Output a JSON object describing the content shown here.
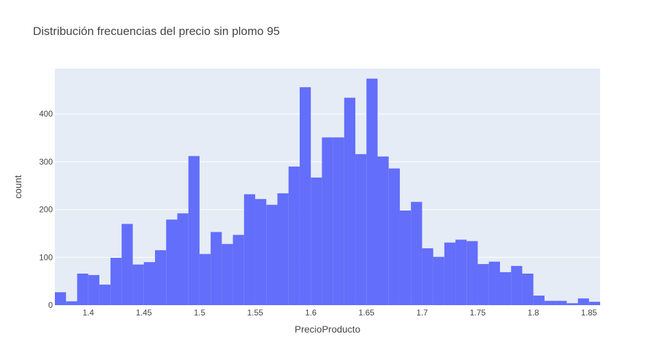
{
  "chart_data": {
    "type": "bar",
    "title": "Distribución frecuencias del precio sin plomo 95",
    "xlabel": "PrecioProducto",
    "ylabel": "count",
    "bin_width": 0.01,
    "bin_starts": [
      1.37,
      1.38,
      1.39,
      1.4,
      1.41,
      1.42,
      1.43,
      1.44,
      1.45,
      1.46,
      1.47,
      1.48,
      1.49,
      1.5,
      1.51,
      1.52,
      1.53,
      1.54,
      1.55,
      1.56,
      1.57,
      1.58,
      1.59,
      1.6,
      1.61,
      1.62,
      1.63,
      1.64,
      1.65,
      1.66,
      1.67,
      1.68,
      1.69,
      1.7,
      1.71,
      1.72,
      1.73,
      1.74,
      1.75,
      1.76,
      1.77,
      1.78,
      1.79,
      1.8,
      1.81,
      1.82,
      1.83,
      1.84,
      1.85
    ],
    "values": [
      27,
      8,
      66,
      63,
      43,
      99,
      170,
      85,
      90,
      115,
      179,
      192,
      312,
      107,
      153,
      128,
      147,
      232,
      222,
      210,
      234,
      290,
      456,
      267,
      351,
      351,
      434,
      316,
      474,
      311,
      286,
      198,
      216,
      119,
      101,
      131,
      137,
      134,
      86,
      91,
      69,
      82,
      66,
      20,
      9,
      9,
      4,
      14,
      7
    ],
    "xlim": [
      1.37,
      1.86
    ],
    "ylim": [
      0,
      495
    ],
    "xticks": [
      1.4,
      1.45,
      1.5,
      1.55,
      1.6,
      1.65,
      1.7,
      1.75,
      1.8,
      1.85
    ],
    "xtick_labels": [
      "1.4",
      "1.45",
      "1.5",
      "1.55",
      "1.6",
      "1.65",
      "1.7",
      "1.75",
      "1.8",
      "1.85"
    ],
    "yticks": [
      0,
      100,
      200,
      300,
      400
    ],
    "ytick_labels": [
      "0",
      "100",
      "200",
      "300",
      "400"
    ],
    "grid": true,
    "colors": {
      "bar": "#636efa",
      "plot_bg": "#e5ecf6",
      "grid": "#ffffff",
      "text": "#444444"
    }
  }
}
